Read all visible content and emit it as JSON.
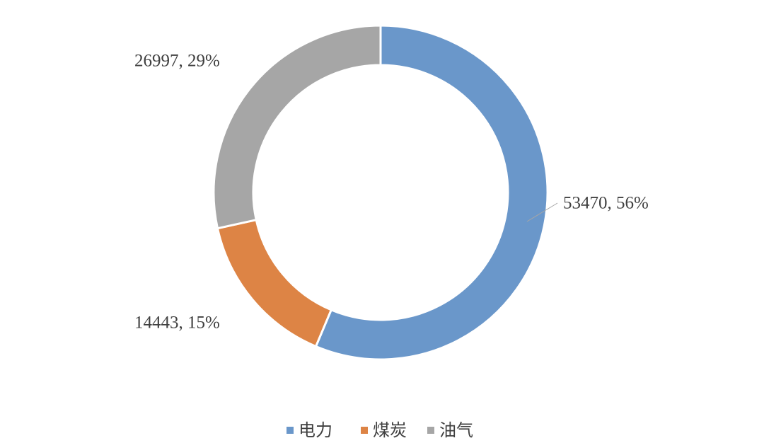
{
  "chart_data": {
    "type": "donut",
    "categories": [
      "电力",
      "煤炭",
      "油气"
    ],
    "values": [
      53470,
      14443,
      26997
    ],
    "value_labels": [
      "53470, 56%",
      "14443, 15%",
      "26997, 29%"
    ],
    "colors": [
      "#6a97ca",
      "#dd8445",
      "#a6a6a6"
    ],
    "legend": "bottom"
  }
}
